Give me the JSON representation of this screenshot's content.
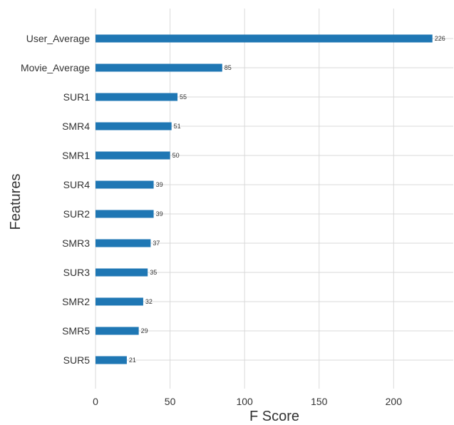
{
  "chart_data": {
    "type": "bar",
    "orientation": "horizontal",
    "title": "",
    "xlabel": "F Score",
    "ylabel": "Features",
    "categories": [
      "User_Average",
      "Movie_Average",
      "SUR1",
      "SMR4",
      "SMR1",
      "SUR4",
      "SUR2",
      "SMR3",
      "SUR3",
      "SMR2",
      "SMR5",
      "SUR5"
    ],
    "values": [
      226,
      85,
      55,
      51,
      50,
      39,
      39,
      37,
      35,
      32,
      29,
      21
    ],
    "data_labels": [
      "226",
      "85",
      "55",
      "51",
      "50",
      "39",
      "39",
      "37",
      "35",
      "32",
      "29",
      "21"
    ],
    "xlim": [
      0,
      240
    ],
    "xticks": [
      0,
      50,
      100,
      150,
      200
    ],
    "xtick_labels": [
      "0",
      "50",
      "100",
      "150",
      "200"
    ],
    "grid": true,
    "legend": "none",
    "colors": {
      "bar": "#1f77b4",
      "grid": "#d9d9d9",
      "background": "#ffffff",
      "text": "#333333"
    }
  }
}
